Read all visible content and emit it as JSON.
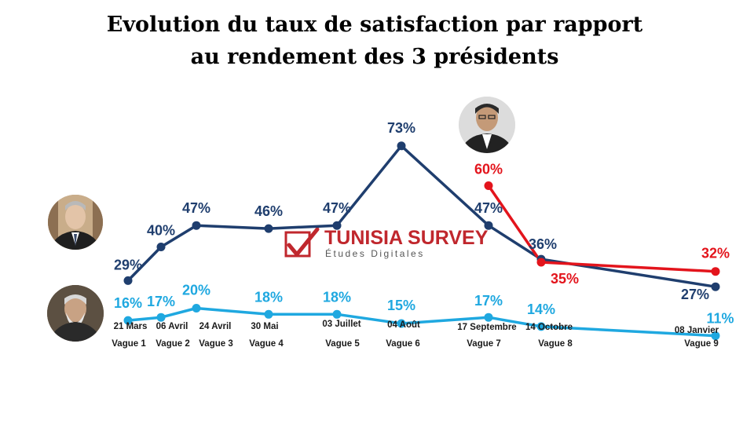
{
  "chart_data": {
    "type": "line",
    "title_lines": [
      "Evolution du taux de satisfaction par rapport",
      "au rendement des 3 présidents"
    ],
    "categories": [
      {
        "date": "21 Mars",
        "wave": "Vague 1"
      },
      {
        "date": "06 Avril",
        "wave": "Vague 2"
      },
      {
        "date": "24 Avril",
        "wave": "Vague 3"
      },
      {
        "date": "30 Mai",
        "wave": "Vague 4"
      },
      {
        "date": "03 Juillet",
        "wave": "Vague 5"
      },
      {
        "date": "04 Août",
        "wave": "Vague 6"
      },
      {
        "date": "17 Septembre",
        "wave": "Vague 7"
      },
      {
        "date": "14 Octobre",
        "wave": "Vague 8"
      },
      {
        "date": "08 Janvier",
        "wave": "Vague 9"
      }
    ],
    "series": [
      {
        "color": "#1f3e6e",
        "icon": "portrait-president-1",
        "values": [
          29,
          40,
          47,
          46,
          47,
          73,
          47,
          36,
          27
        ],
        "labels": [
          "29%",
          "40%",
          "47%",
          "46%",
          "47%",
          "73%",
          "47%",
          "36%",
          "27%"
        ]
      },
      {
        "color": "#e3141c",
        "icon": "portrait-president-2",
        "values": [
          null,
          null,
          null,
          null,
          null,
          null,
          60,
          35,
          32
        ],
        "labels": [
          "",
          "",
          "",
          "",
          "",
          "",
          "60%",
          "35%",
          "32%"
        ]
      },
      {
        "color": "#1fa8e0",
        "icon": "portrait-president-3",
        "values": [
          16,
          17,
          20,
          18,
          18,
          15,
          17,
          14,
          11
        ],
        "labels": [
          "16%",
          "17%",
          "20%",
          "18%",
          "18%",
          "15%",
          "17%",
          "14%",
          "11%"
        ]
      }
    ],
    "ylim": [
      0,
      80
    ],
    "grid": false,
    "legend": "none"
  },
  "logo": {
    "main": "TUNISIA SURVEY",
    "sub": "Études Digitales",
    "color": "#c0272d",
    "icon": "checkmark-box-icon"
  }
}
